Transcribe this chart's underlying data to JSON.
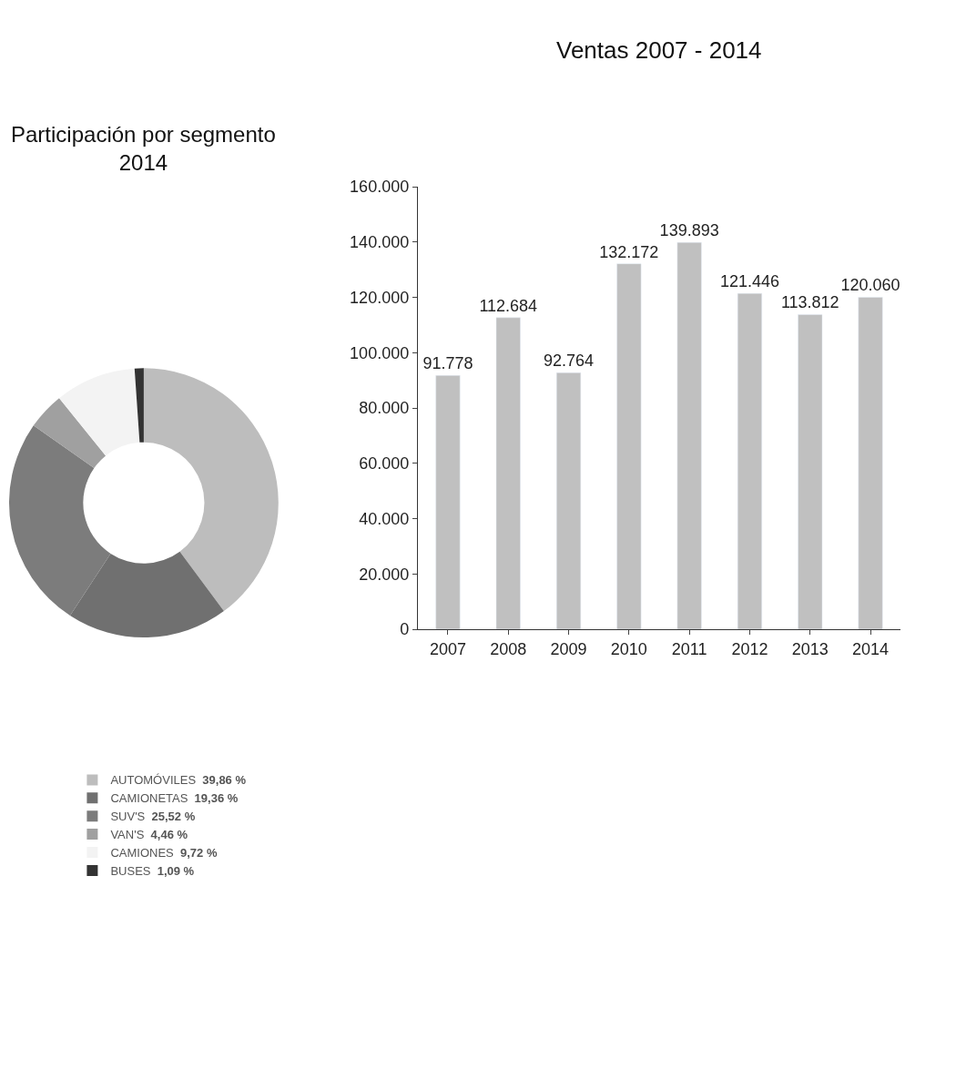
{
  "chart_data": [
    {
      "type": "donut",
      "title": "Participación por segmento\n2014",
      "categories": [
        "AUTOMÓVILES",
        "CAMIONETAS",
        "SUV'S",
        "VAN'S",
        "CAMIONES",
        "BUSES"
      ],
      "values": [
        39.86,
        19.36,
        25.52,
        4.46,
        9.72,
        1.09
      ],
      "value_labels": [
        "39,86 %",
        "19,36 %",
        "25,52 %",
        "4,46 %",
        "9,72 %",
        "1,09 %"
      ],
      "colors": [
        "#bdbdbd",
        "#707070",
        "#7c7c7c",
        "#a0a0a0",
        "#f3f3f3",
        "#333333"
      ],
      "legend": "bottom"
    },
    {
      "type": "bar",
      "title": "Ventas 2007 - 2014",
      "categories": [
        "2007",
        "2008",
        "2009",
        "2010",
        "2011",
        "2012",
        "2013",
        "2014"
      ],
      "values": [
        91778,
        112684,
        92764,
        132172,
        139893,
        121446,
        113812,
        120060
      ],
      "value_labels": [
        "91.778",
        "112.684",
        "92.764",
        "132.172",
        "139.893",
        "121.446",
        "113.812",
        "120.060"
      ],
      "color": "#c0c0c0",
      "ylim": [
        0,
        160000
      ],
      "yticks": [
        {
          "value": 0,
          "label": "0"
        },
        {
          "value": 20000,
          "label": "20.000"
        },
        {
          "value": 40000,
          "label": "40.000"
        },
        {
          "value": 60000,
          "label": "60.000"
        },
        {
          "value": 80000,
          "label": "80.000"
        },
        {
          "value": 100000,
          "label": "100.000"
        },
        {
          "value": 120000,
          "label": "120.000"
        },
        {
          "value": 140000,
          "label": "140.000"
        },
        {
          "value": 160000,
          "label": "160.000"
        }
      ]
    }
  ]
}
